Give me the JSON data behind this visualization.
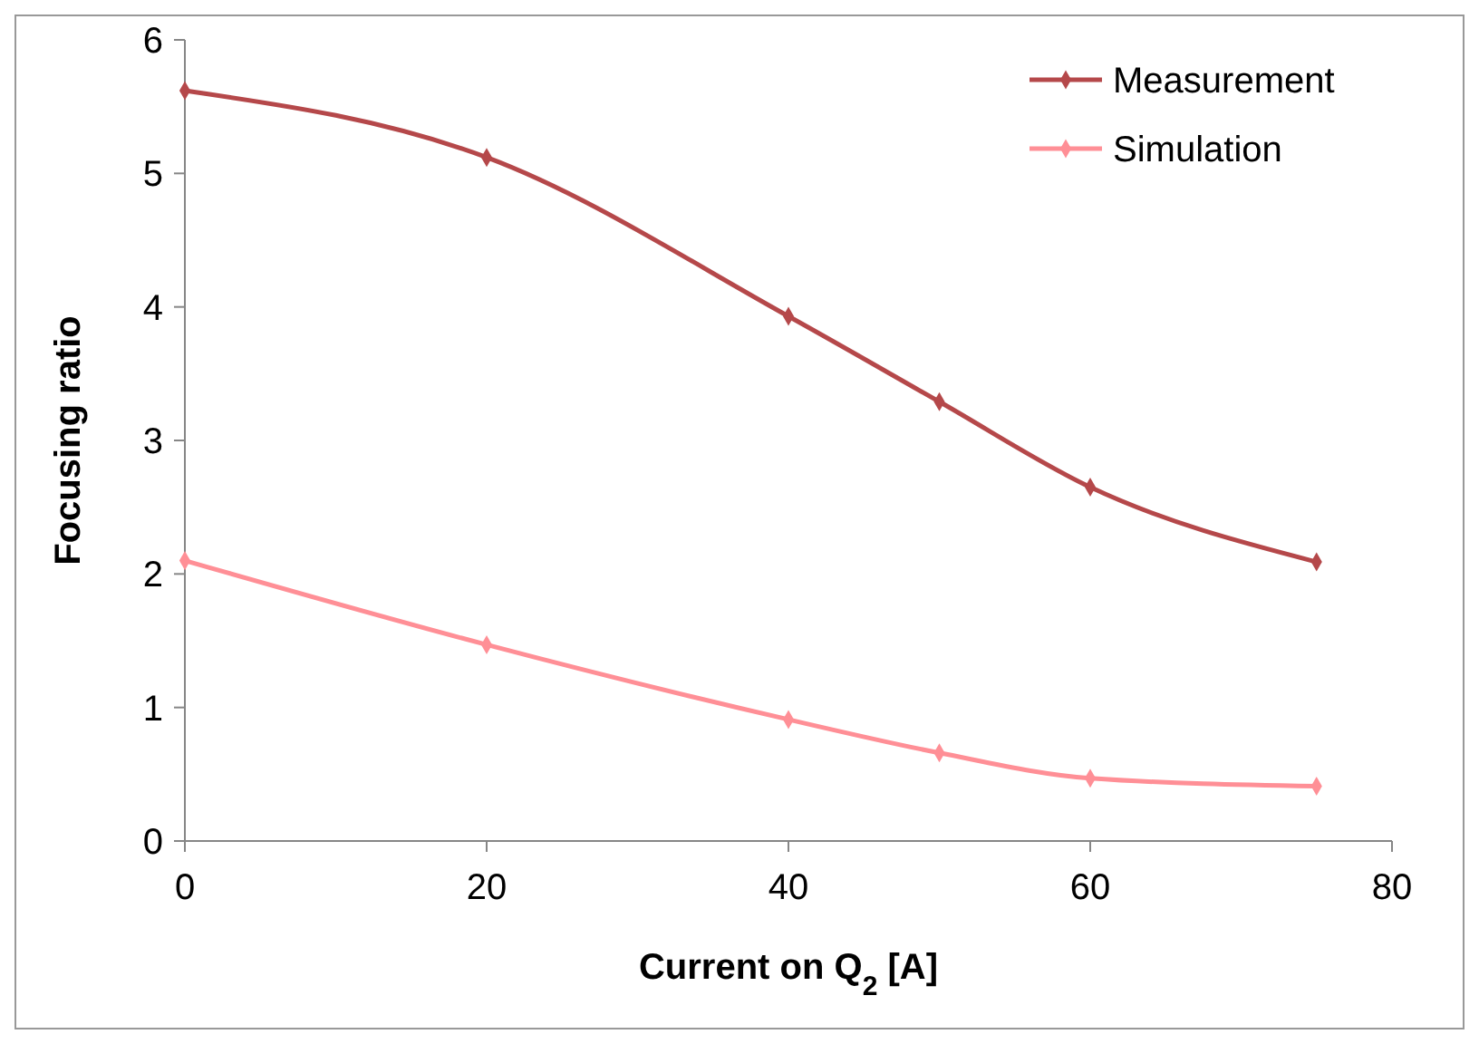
{
  "chart_data": {
    "type": "line",
    "xlabel": "Current on Q$_{2}$ [A]",
    "ylabel": "Focusing ratio",
    "x": [
      0,
      20,
      40,
      50,
      60,
      75
    ],
    "series": [
      {
        "name": "Measurement",
        "color": "#b5484a",
        "values": [
          5.62,
          5.12,
          3.93,
          3.29,
          2.65,
          2.09
        ]
      },
      {
        "name": "Simulation",
        "color": "#ff8f96",
        "values": [
          2.1,
          1.47,
          0.91,
          0.66,
          0.47,
          0.41
        ]
      }
    ],
    "xlim": [
      0,
      80
    ],
    "xticks": [
      0,
      20,
      40,
      60,
      80
    ],
    "ylim": [
      0,
      6
    ],
    "yticks": [
      0,
      1,
      2,
      3,
      4,
      5,
      6
    ],
    "grid": false,
    "legend": "top right",
    "marker": "diamond",
    "line_style": "solid"
  }
}
